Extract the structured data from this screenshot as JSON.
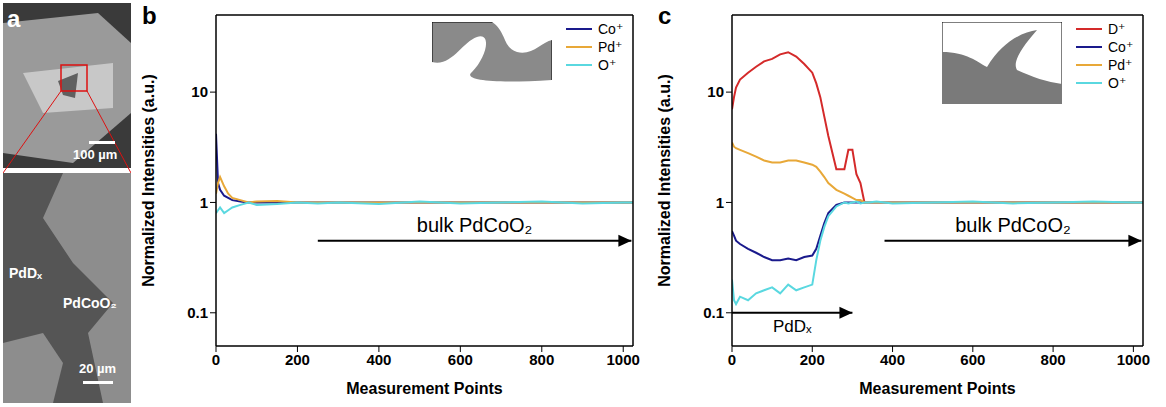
{
  "panel_a": {
    "title": "a",
    "images": [
      {
        "scale_bar": "100 µm"
      },
      {
        "labels": [
          "PdDₓ",
          "PdCoO₂"
        ],
        "scale_bar": "20 µm"
      }
    ]
  },
  "chart_data": [
    {
      "type": "line",
      "title": "b",
      "x_label": "Measurement Points",
      "y_label": "Normalized Intensities (a.u.)",
      "log": "y",
      "grid": false,
      "legend": "upper right",
      "xlim": [
        0,
        1024
      ],
      "xticks": [
        0,
        200,
        400,
        600,
        800,
        1000
      ],
      "ylim": [
        0.05,
        50
      ],
      "yticks": [
        0.1,
        1,
        10
      ],
      "x": [
        0,
        5,
        10,
        20,
        30,
        40,
        60,
        80,
        100,
        150,
        200,
        250,
        300,
        400,
        500,
        600,
        700,
        800,
        900,
        1000,
        1024
      ],
      "series": [
        {
          "name": "Co⁺",
          "color": "#1a1a8c",
          "values": [
            4.2,
            1.5,
            1.3,
            1.15,
            1.1,
            1.05,
            1.02,
            1.0,
            1.0,
            1.0,
            1.0,
            1.0,
            1.0,
            1.0,
            1.0,
            1.0,
            1.0,
            1.0,
            1.0,
            1.0,
            1.0
          ]
        },
        {
          "name": "Pd⁺",
          "color": "#e8a838",
          "values": [
            1.2,
            1.5,
            1.7,
            1.4,
            1.2,
            1.1,
            1.05,
            1.0,
            1.02,
            1.03,
            1.0,
            1.0,
            1.0,
            1.0,
            1.0,
            1.0,
            1.0,
            1.0,
            1.0,
            1.0,
            1.0
          ]
        },
        {
          "name": "O⁺",
          "color": "#5ad8e0",
          "values": [
            0.8,
            0.85,
            0.9,
            0.8,
            0.85,
            0.9,
            0.95,
            1.0,
            0.95,
            0.97,
            1.0,
            0.98,
            1.0,
            0.97,
            1.02,
            0.98,
            1.0,
            1.02,
            0.98,
            1.0,
            1.0
          ]
        }
      ],
      "annotations": [
        {
          "text": "bulk PdCoO₂",
          "x": [
            250,
            1020
          ],
          "y": 0.45
        }
      ]
    },
    {
      "type": "line",
      "title": "c",
      "x_label": "Measurement Points",
      "y_label": "Normalized Intensities (a.u.)",
      "log": "y",
      "grid": false,
      "legend": "upper right",
      "xlim": [
        0,
        1024
      ],
      "xticks": [
        0,
        200,
        400,
        600,
        800,
        1000
      ],
      "ylim": [
        0.05,
        50
      ],
      "yticks": [
        0.1,
        1,
        10
      ],
      "x": [
        0,
        5,
        10,
        20,
        40,
        60,
        80,
        100,
        120,
        140,
        160,
        180,
        200,
        210,
        220,
        230,
        240,
        260,
        280,
        290,
        300,
        310,
        320,
        330,
        340,
        360,
        400,
        500,
        600,
        700,
        800,
        900,
        1000,
        1024
      ],
      "series": [
        {
          "name": "D⁺",
          "color": "#d42a2a",
          "values": [
            7,
            9,
            11,
            13,
            15,
            17,
            19,
            20,
            22,
            23,
            21,
            18,
            15,
            12,
            9,
            6,
            4,
            2,
            2,
            3,
            3,
            1.8,
            1.5,
            1.0,
            null,
            null,
            null,
            null,
            null,
            null,
            null,
            null,
            null,
            null
          ]
        },
        {
          "name": "Co⁺",
          "color": "#1a1a8c",
          "values": [
            0.55,
            0.5,
            0.45,
            0.42,
            0.38,
            0.35,
            0.32,
            0.3,
            0.3,
            0.31,
            0.3,
            0.32,
            0.33,
            0.38,
            0.5,
            0.65,
            0.8,
            0.95,
            1.0,
            1.0,
            1.0,
            1.0,
            1.0,
            1.0,
            1.0,
            1.0,
            1.0,
            1.0,
            1.0,
            1.0,
            1.0,
            1.0,
            1.0,
            1.0
          ]
        },
        {
          "name": "Pd⁺",
          "color": "#e8a838",
          "values": [
            3.5,
            3.2,
            3.1,
            3.0,
            2.8,
            2.6,
            2.4,
            2.3,
            2.3,
            2.4,
            2.4,
            2.3,
            2.2,
            2.1,
            1.9,
            1.7,
            1.5,
            1.3,
            1.2,
            1.15,
            1.1,
            1.05,
            1.05,
            1.0,
            1.0,
            1.0,
            1.0,
            1.0,
            1.0,
            1.0,
            1.0,
            1.0,
            1.0,
            1.0
          ]
        },
        {
          "name": "O⁺",
          "color": "#5ad8e0",
          "values": [
            0.2,
            0.13,
            0.12,
            0.14,
            0.13,
            0.15,
            0.16,
            0.17,
            0.15,
            0.18,
            0.16,
            0.17,
            0.18,
            0.3,
            0.45,
            0.6,
            0.75,
            0.92,
            1.0,
            0.98,
            1.0,
            1.02,
            0.98,
            1.0,
            1.0,
            1.02,
            0.98,
            1.0,
            1.02,
            0.98,
            1.0,
            1.02,
            1.0,
            1.0
          ]
        }
      ],
      "annotations": [
        {
          "text": "PdDₓ",
          "x": [
            0,
            300
          ],
          "y": 0.1
        },
        {
          "text": "bulk PdCoO₂",
          "x": [
            380,
            1020
          ],
          "y": 0.45
        }
      ]
    }
  ]
}
